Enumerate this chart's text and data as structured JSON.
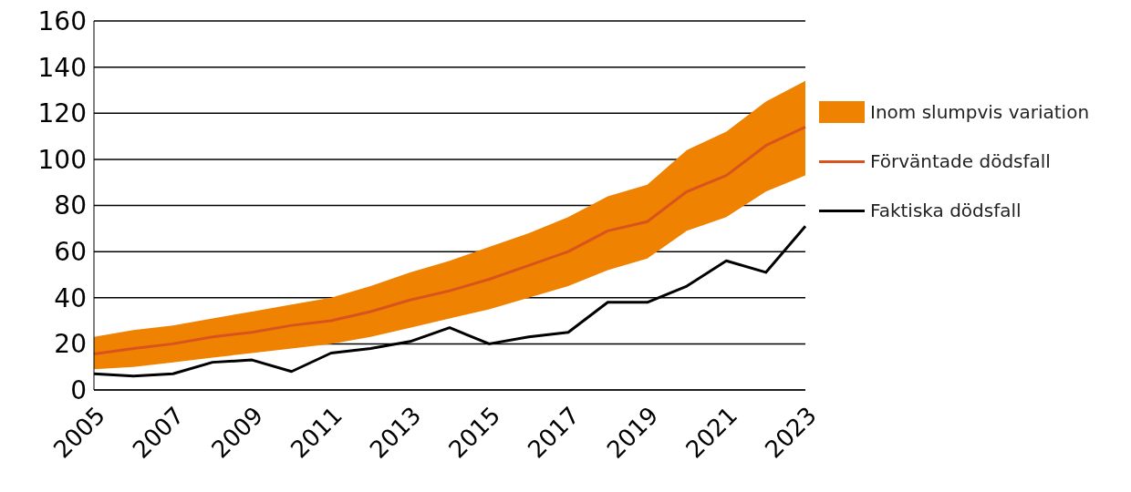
{
  "chart_data": {
    "type": "line",
    "categories": [
      "2005",
      null,
      "2007",
      null,
      "2009",
      null,
      "2011",
      null,
      "2013",
      null,
      "2015",
      null,
      "2017",
      null,
      "2019",
      null,
      "2021",
      null,
      "2023"
    ],
    "series": [
      {
        "name": "Inom slumpvis variation",
        "type": "area",
        "color": "#ef8200",
        "values": [
          null,
          null,
          null,
          null,
          null,
          null,
          null,
          null,
          null,
          null,
          null,
          null,
          null,
          null,
          null,
          null,
          null,
          null,
          null
        ],
        "lower": [
          9,
          10,
          12,
          14,
          16,
          18,
          20,
          23,
          27,
          31,
          35,
          40,
          45,
          52,
          57,
          69,
          75,
          86,
          93
        ],
        "upper": [
          23,
          26,
          28,
          31,
          34,
          37,
          40,
          45,
          51,
          56,
          62,
          68,
          75,
          84,
          89,
          104,
          112,
          125,
          134
        ]
      },
      {
        "name": "Förväntade dödsfall",
        "type": "line",
        "color": "#d9531e",
        "values": [
          15.6,
          18,
          20,
          23,
          25,
          28,
          30,
          34,
          39,
          43,
          48,
          54,
          60,
          69,
          73,
          86,
          93,
          106,
          114
        ]
      },
      {
        "name": "Faktiska dödsfall",
        "type": "line",
        "color": "#000000",
        "values": [
          7,
          6,
          7,
          12,
          13,
          8,
          16,
          18,
          21,
          27,
          20,
          23,
          25,
          38,
          38,
          45,
          56,
          51,
          71
        ]
      }
    ],
    "ylim": [
      0,
      160
    ],
    "yticks": [
      0,
      20,
      40,
      60,
      80,
      100,
      120,
      140,
      160
    ],
    "grid": "y",
    "legend": "right",
    "marker": "none",
    "line_style": "solid"
  }
}
